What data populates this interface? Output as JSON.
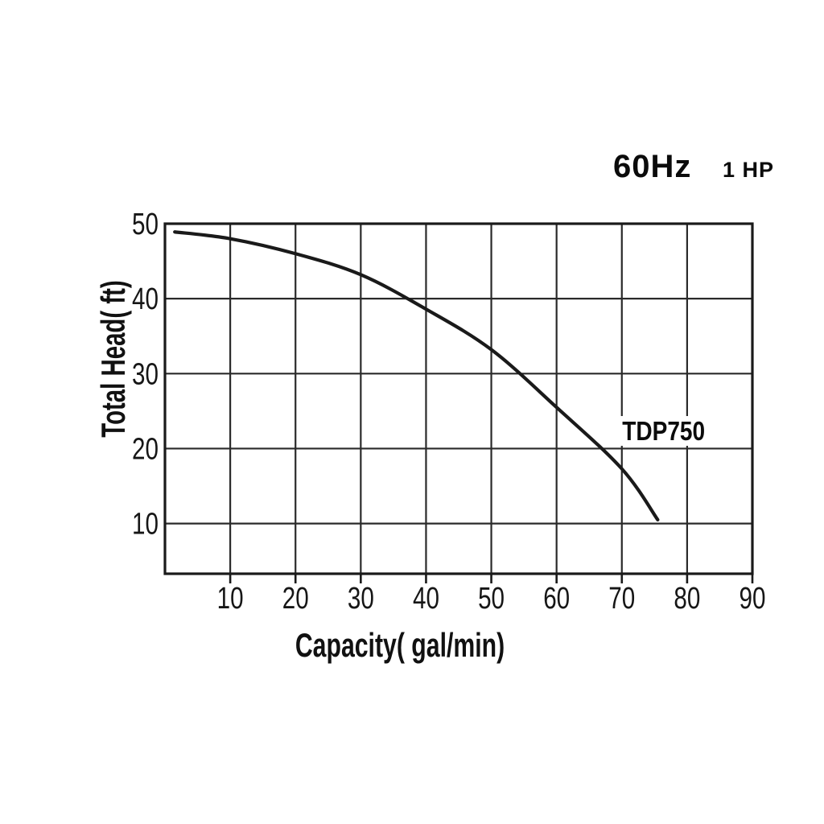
{
  "header": {
    "frequency": "60Hz",
    "power": "1 HP"
  },
  "chart_data": {
    "type": "line",
    "title": "60Hz 1 HP",
    "xlabel": "Capacity( gal/min)",
    "ylabel": "Total Head( ft)",
    "xlim": [
      0,
      90
    ],
    "ylim": [
      3.3,
      50
    ],
    "x_ticks": [
      10,
      20,
      30,
      40,
      50,
      60,
      70,
      80,
      90
    ],
    "y_ticks": [
      10,
      20,
      30,
      40,
      50
    ],
    "grid": true,
    "legend_position": "none",
    "series": [
      {
        "name": "TDP750",
        "points": [
          [
            1.5,
            48.9
          ],
          [
            10,
            48.0
          ],
          [
            20,
            46.0
          ],
          [
            30,
            43.2
          ],
          [
            40,
            38.6
          ],
          [
            50,
            33.2
          ],
          [
            60,
            25.5
          ],
          [
            70,
            17.3
          ],
          [
            75.5,
            10.5
          ]
        ]
      }
    ],
    "annotation": {
      "text": "TDP750",
      "x": 76.4,
      "y": 22.3
    },
    "colors": {
      "line": "#1a1a1a",
      "grid": "#2a2a2a",
      "axis": "#1a1a1a",
      "text": "#161616",
      "background": "#ffffff"
    }
  }
}
